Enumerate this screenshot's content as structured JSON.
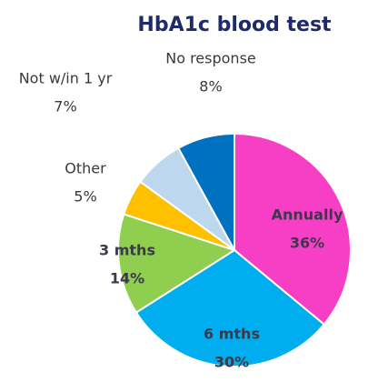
{
  "chart_data": {
    "type": "pie",
    "title": "HbA1c blood test",
    "categories": [
      "Annually",
      "6 mths",
      "3 mths",
      "Other",
      "Not w/in 1 yr",
      "No response"
    ],
    "values": [
      36,
      30,
      14,
      5,
      7,
      8
    ],
    "value_labels": [
      "36%",
      "30%",
      "14%",
      "5%",
      "7%",
      "8%"
    ],
    "colors": [
      "#f73fc6",
      "#00aeef",
      "#8fce4f",
      "#ffc000",
      "#bdd7ee",
      "#0070c0"
    ]
  }
}
